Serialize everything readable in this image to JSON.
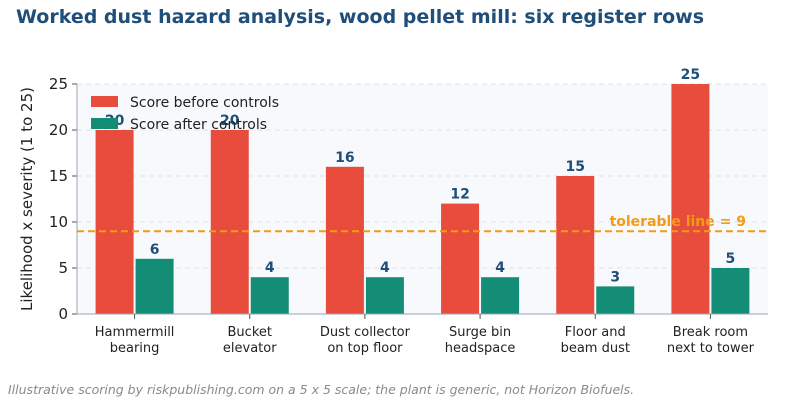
{
  "colors": {
    "before": "#e74c3c",
    "after": "#138d75",
    "reference": "#f39c12",
    "plot_bg": "#f7f9fc",
    "title": "#1f4e79"
  },
  "footnote": "Illustrative scoring by riskpublishing.com on a 5 x 5 scale; the plant is generic, not Horizon Biofuels.",
  "chart_data": {
    "type": "bar",
    "title": "Worked dust hazard analysis, wood pellet mill: six register rows",
    "xlabel": "",
    "ylabel": "Likelihood x severity (1 to 25)",
    "categories": [
      [
        "Hammermill",
        "bearing"
      ],
      [
        "Bucket",
        "elevator"
      ],
      [
        "Dust collector",
        "on top floor"
      ],
      [
        "Surge bin",
        "headspace"
      ],
      [
        "Floor and",
        "beam dust"
      ],
      [
        "Break room",
        "next to tower"
      ]
    ],
    "series": [
      {
        "name": "Score before controls",
        "values": [
          20,
          20,
          16,
          12,
          15,
          25
        ]
      },
      {
        "name": "Score after controls",
        "values": [
          6,
          4,
          4,
          4,
          3,
          5
        ]
      }
    ],
    "ylim": [
      0,
      25
    ],
    "yticks": [
      0,
      5,
      10,
      15,
      20,
      25
    ],
    "reference_line": {
      "value": 9,
      "label": "tolerable line = 9"
    },
    "grid": "horizontal dashed",
    "legend": "top-left"
  }
}
